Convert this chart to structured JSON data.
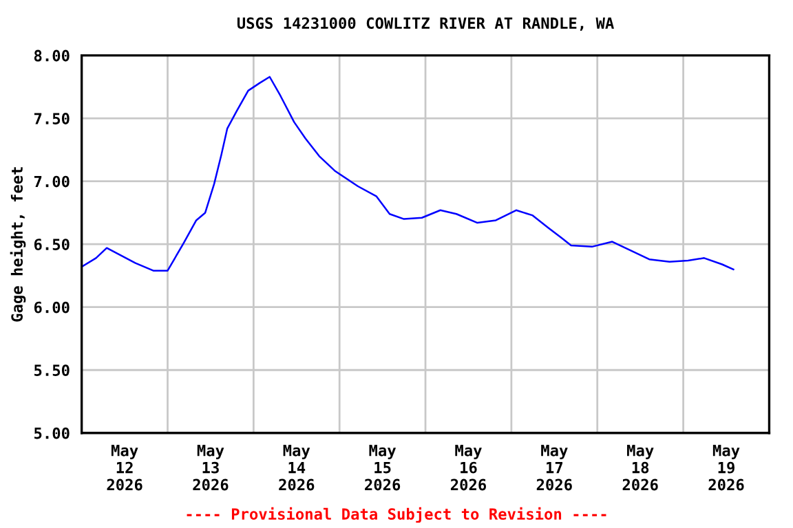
{
  "chart_data": {
    "type": "line",
    "title": "USGS 14231000 COWLITZ RIVER AT RANDLE, WA",
    "ylabel": "Gage height, feet",
    "annotations": [
      "---- Provisional Data Subject to Revision ----"
    ],
    "series": [
      {
        "color": "#0000ff",
        "x": [
          "2026-05-12T00:00",
          "2026-05-12T04:00",
          "2026-05-12T07:00",
          "2026-05-12T11:00",
          "2026-05-12T15:00",
          "2026-05-12T20:00",
          "2026-05-13T00:00",
          "2026-05-13T04:30",
          "2026-05-13T08:00",
          "2026-05-13T10:30",
          "2026-05-13T13:00",
          "2026-05-13T15:00",
          "2026-05-13T16:40",
          "2026-05-13T19:20",
          "2026-05-13T22:30",
          "2026-05-14T01:40",
          "2026-05-14T04:30",
          "2026-05-14T07:30",
          "2026-05-14T11:20",
          "2026-05-14T14:30",
          "2026-05-14T18:20",
          "2026-05-14T22:50",
          "2026-05-15T05:10",
          "2026-05-15T10:20",
          "2026-05-15T14:00",
          "2026-05-15T18:00",
          "2026-05-15T23:00",
          "2026-05-16T04:10",
          "2026-05-16T08:40",
          "2026-05-16T14:30",
          "2026-05-16T19:40",
          "2026-05-17T01:20",
          "2026-05-17T05:50",
          "2026-05-17T10:20",
          "2026-05-17T14:00",
          "2026-05-17T16:40",
          "2026-05-17T22:30",
          "2026-05-18T04:10",
          "2026-05-18T09:20",
          "2026-05-18T14:30",
          "2026-05-18T20:10",
          "2026-05-19T01:20",
          "2026-05-19T05:50",
          "2026-05-19T10:50",
          "2026-05-19T14:00"
        ],
        "values": [
          6.32,
          6.39,
          6.47,
          6.41,
          6.35,
          6.29,
          6.29,
          6.51,
          6.69,
          6.75,
          6.98,
          7.21,
          7.42,
          7.56,
          7.72,
          7.78,
          7.83,
          7.68,
          7.47,
          7.34,
          7.2,
          7.08,
          6.96,
          6.88,
          6.74,
          6.7,
          6.71,
          6.77,
          6.74,
          6.67,
          6.69,
          6.77,
          6.73,
          6.63,
          6.55,
          6.49,
          6.48,
          6.52,
          6.45,
          6.38,
          6.36,
          6.37,
          6.39,
          6.34,
          6.3
        ]
      }
    ],
    "xlim": [
      "2026-05-12T00:00",
      "2026-05-20T00:00"
    ],
    "xticks": [
      {
        "value": "2026-05-12T12:00",
        "label": "May\n12\n2026"
      },
      {
        "value": "2026-05-13T00:00",
        "label": null
      },
      {
        "value": "2026-05-13T12:00",
        "label": "May\n13\n2026"
      },
      {
        "value": "2026-05-14T00:00",
        "label": null
      },
      {
        "value": "2026-05-14T12:00",
        "label": "May\n14\n2026"
      },
      {
        "value": "2026-05-15T00:00",
        "label": null
      },
      {
        "value": "2026-05-15T12:00",
        "label": "May\n15\n2026"
      },
      {
        "value": "2026-05-16T00:00",
        "label": null
      },
      {
        "value": "2026-05-16T12:00",
        "label": "May\n16\n2026"
      },
      {
        "value": "2026-05-17T00:00",
        "label": null
      },
      {
        "value": "2026-05-17T12:00",
        "label": "May\n17\n2026"
      },
      {
        "value": "2026-05-18T00:00",
        "label": null
      },
      {
        "value": "2026-05-18T12:00",
        "label": "May\n18\n2026"
      },
      {
        "value": "2026-05-19T00:00",
        "label": null
      },
      {
        "value": "2026-05-19T12:00",
        "label": "May\n19\n2026"
      }
    ],
    "ylim": [
      5.0,
      8.0
    ],
    "yticks": [
      {
        "value": 5.0,
        "label": "5.00"
      },
      {
        "value": 5.5,
        "label": "5.50"
      },
      {
        "value": 6.0,
        "label": "6.00"
      },
      {
        "value": 6.5,
        "label": "6.50"
      },
      {
        "value": 7.0,
        "label": "7.00"
      },
      {
        "value": 7.5,
        "label": "7.50"
      },
      {
        "value": 8.0,
        "label": "8.00"
      }
    ],
    "grid": true
  }
}
